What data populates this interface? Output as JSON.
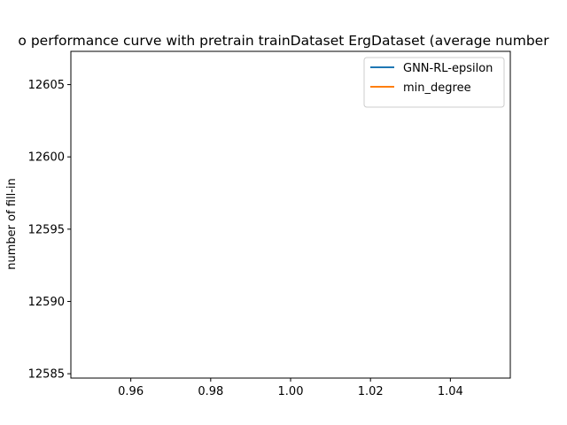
{
  "chart_data": {
    "type": "line",
    "title": "o performance curve with pretrain trainDataset ErgDataset (average number",
    "xlabel": "",
    "ylabel": "number of fill-in",
    "xlim": [
      0.945,
      1.055
    ],
    "ylim": [
      12584.7,
      12607.3
    ],
    "x_ticks": [
      0.96,
      0.98,
      1.0,
      1.02,
      1.04
    ],
    "x_tick_labels": [
      "0.96",
      "0.98",
      "1.00",
      "1.02",
      "1.04"
    ],
    "y_ticks": [
      12585,
      12590,
      12595,
      12600,
      12605
    ],
    "y_tick_labels": [
      "12585",
      "12590",
      "12595",
      "12600",
      "12605"
    ],
    "grid": false,
    "legend_position": "top-right",
    "series": [
      {
        "name": "GNN-RL-epsilon",
        "color": "#1f77b4",
        "x": [],
        "y": []
      },
      {
        "name": "min_degree",
        "color": "#ff7f0e",
        "x": [],
        "y": []
      }
    ]
  }
}
